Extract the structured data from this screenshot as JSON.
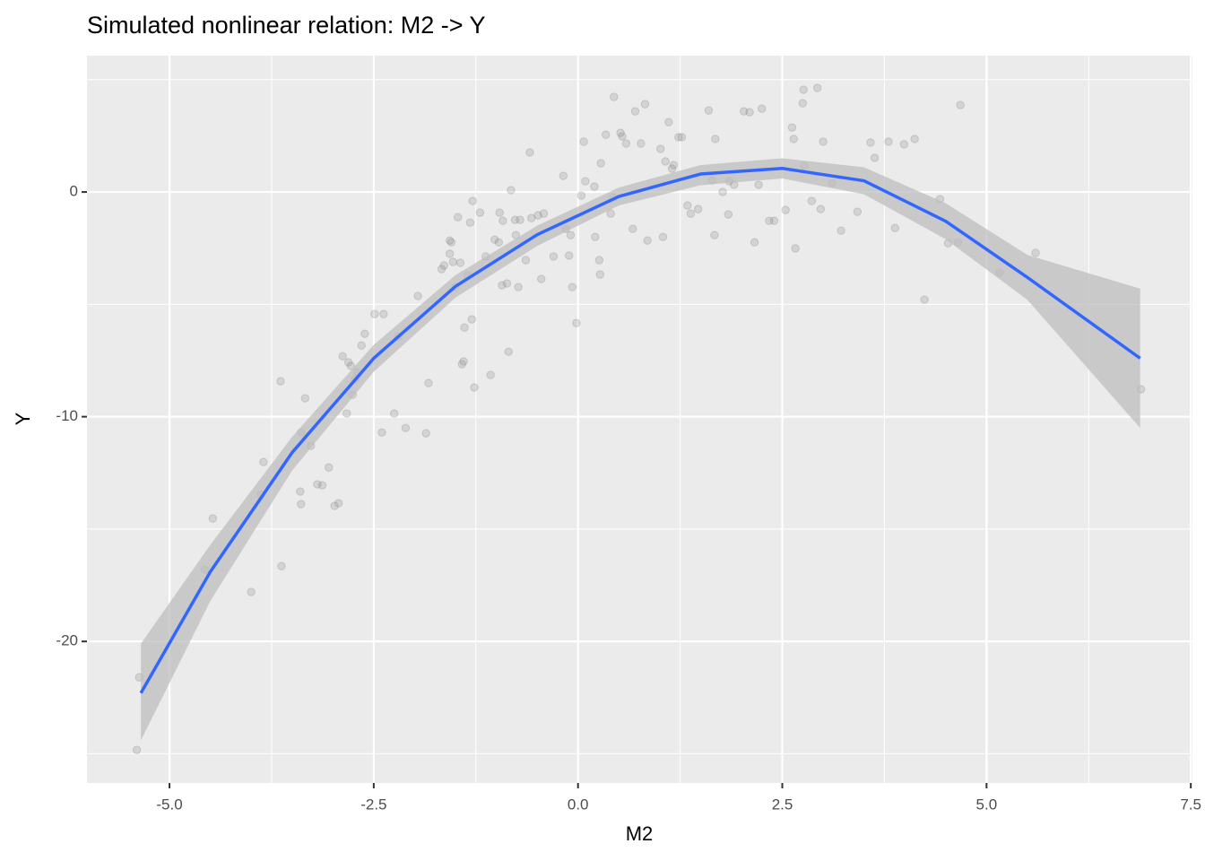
{
  "chart_data": {
    "type": "scatter",
    "title": "Simulated nonlinear relation: M2 -> Y",
    "x_label": "M2",
    "y_label": "Y",
    "xlim": [
      -6.01,
      7.52
    ],
    "ylim": [
      -26.3,
      6.07
    ],
    "xticks": [
      {
        "value": -5,
        "label": "-5.0"
      },
      -2.5,
      {
        "value": 0,
        "label": "0.0"
      },
      2.5,
      {
        "value": 5,
        "label": "5.0"
      },
      7.5
    ],
    "yticks": [
      -20,
      -10,
      0
    ],
    "minor_xticks": [
      -3.75,
      -1.25,
      1.25,
      3.75,
      6.25
    ],
    "minor_yticks": [
      -25,
      -15,
      -5,
      5
    ],
    "grid": true,
    "points": {
      "color": "#808080",
      "x": [
        -5.4,
        -5.37,
        -4.57,
        -4.47,
        -4.0,
        -3.85,
        -3.88,
        -3.64,
        -3.63,
        -3.39,
        -3.4,
        -3.39,
        -3.34,
        -3.27,
        -3.19,
        -3.13,
        -3.05,
        -2.98,
        -2.93,
        -2.88,
        -2.83,
        -2.81,
        -2.78,
        -2.76,
        -2.73,
        -2.7,
        -2.65,
        -2.61,
        -2.49,
        -2.38,
        -2.4,
        -2.25,
        -2.2,
        -2.11,
        -1.96,
        -1.86,
        -1.83,
        -1.67,
        -1.64,
        -1.57,
        -1.57,
        -1.55,
        -1.53,
        -1.5,
        -1.47,
        -1.44,
        -1.42,
        -1.4,
        -1.39,
        -1.35,
        -1.32,
        -1.3,
        -1.29,
        -1.27,
        -1.2,
        -1.13,
        -1.07,
        -1.02,
        -0.97,
        -0.96,
        -0.93,
        -0.92,
        -0.87,
        -0.85,
        -0.82,
        -0.77,
        -0.76,
        -0.73,
        -0.71,
        -0.64,
        -0.59,
        -0.57,
        -0.49,
        -0.45,
        -0.42,
        -0.3,
        -0.18,
        -0.15,
        -0.11,
        -0.09,
        -0.07,
        -0.02,
        0.04,
        0.07,
        0.09,
        0.2,
        0.21,
        0.26,
        0.27,
        0.28,
        0.34,
        0.4,
        0.43,
        0.44,
        0.52,
        0.54,
        0.59,
        0.67,
        0.7,
        0.77,
        0.82,
        0.85,
        1.01,
        1.04,
        1.07,
        1.11,
        1.15,
        1.17,
        1.23,
        1.27,
        1.34,
        1.38,
        1.47,
        1.6,
        1.64,
        1.67,
        1.68,
        1.77,
        1.84,
        1.85,
        1.91,
        2.03,
        2.1,
        2.16,
        2.21,
        2.25,
        2.34,
        2.4,
        2.54,
        2.62,
        2.64,
        2.66,
        2.75,
        2.76,
        2.77,
        2.86,
        2.93,
        2.97,
        3.0,
        3.11,
        3.22,
        3.42,
        3.58,
        3.63,
        3.8,
        3.88,
        3.99,
        4.12,
        4.24,
        4.43,
        4.53,
        4.65,
        4.68,
        5.16,
        5.6,
        6.89
      ],
      "y": [
        -24.83,
        -21.6,
        -16.81,
        -14.53,
        -17.8,
        -12.02,
        -13.45,
        -8.42,
        -16.65,
        -10.7,
        -13.33,
        -13.89,
        -9.18,
        -11.3,
        -13.01,
        -13.05,
        -12.26,
        -13.97,
        -13.85,
        -7.31,
        -9.86,
        -7.58,
        -7.74,
        -9.02,
        -8.34,
        -8.02,
        -6.83,
        -6.31,
        -5.43,
        -5.43,
        -10.7,
        -9.86,
        -6.43,
        -10.5,
        -4.63,
        -10.74,
        -8.5,
        -3.43,
        -3.27,
        -2.75,
        -2.16,
        -2.24,
        -3.11,
        -4.23,
        -1.12,
        -3.15,
        -7.66,
        -7.54,
        -6.03,
        -3.71,
        -1.36,
        -5.67,
        -0.4,
        -8.7,
        -0.92,
        -2.87,
        -8.14,
        -2.12,
        -2.24,
        -0.92,
        -4.15,
        -1.28,
        -4.07,
        -7.11,
        0.08,
        -1.24,
        -1.92,
        -4.23,
        -1.24,
        -3.03,
        1.76,
        -1.16,
        -1.04,
        -3.87,
        -0.96,
        -2.87,
        0.72,
        -1.64,
        -2.83,
        -1.92,
        -4.23,
        -5.83,
        -0.16,
        2.24,
        0.48,
        0.24,
        -2.0,
        -3.03,
        -3.67,
        1.28,
        2.55,
        -0.96,
        -0.24,
        4.23,
        2.63,
        2.48,
        2.16,
        -1.64,
        3.59,
        2.16,
        3.91,
        -2.16,
        1.92,
        -2.0,
        1.36,
        3.11,
        1.04,
        1.2,
        2.44,
        2.44,
        -0.6,
        -0.96,
        -0.76,
        3.63,
        0.52,
        -1.92,
        2.36,
        0,
        -1.0,
        0.48,
        0.32,
        3.59,
        3.55,
        -2.24,
        0.32,
        3.71,
        -1.28,
        -1.28,
        -0.8,
        2.87,
        2.36,
        -2.51,
        3.95,
        4.55,
        1.16,
        -0.4,
        4.63,
        -0.76,
        2.24,
        0.4,
        -1.72,
        -0.88,
        2.2,
        1.52,
        2.24,
        -1.6,
        2.12,
        2.36,
        -4.79,
        -0.32,
        -2.28,
        -2.24,
        3.87,
        -3.59,
        -2.71,
        -8.78
      ]
    },
    "smooth": {
      "color": "#3366ff",
      "band_color": "#bdbdbd",
      "x": [
        -5.35,
        -4.5,
        -3.5,
        -2.5,
        -1.5,
        -0.5,
        0.5,
        1.5,
        2.5,
        3.5,
        4.5,
        5.5,
        6.88
      ],
      "y": [
        -22.3,
        -16.9,
        -11.6,
        -7.4,
        -4.2,
        -1.9,
        -0.2,
        0.8,
        1.05,
        0.5,
        -1.3,
        -3.8,
        -7.4
      ],
      "lower": [
        -24.4,
        -18.2,
        -12.4,
        -8.0,
        -4.7,
        -2.4,
        -0.6,
        0.3,
        0.6,
        -0.1,
        -2.1,
        -4.8,
        -10.5
      ],
      "upper": [
        -20.1,
        -15.7,
        -10.9,
        -6.8,
        -3.7,
        -1.5,
        0.2,
        1.2,
        1.5,
        1.1,
        -0.5,
        -2.8,
        -4.3
      ]
    }
  }
}
